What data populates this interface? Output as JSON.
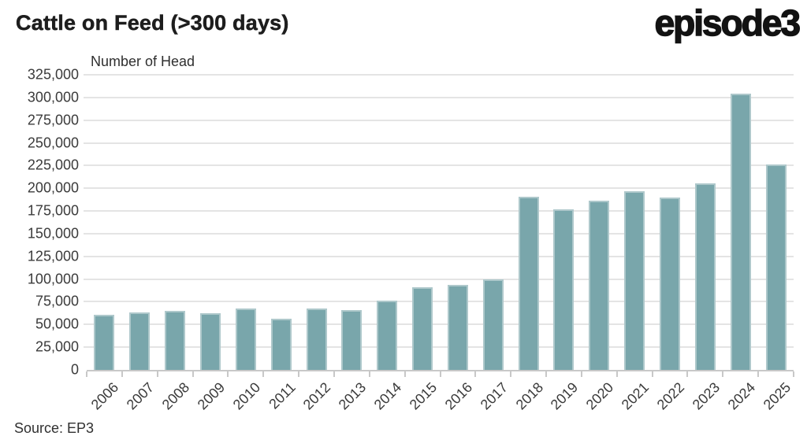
{
  "header": {
    "title": "Cattle on Feed (>300 days)",
    "logo": "episode3"
  },
  "source_note": "Source: EP3",
  "colors": {
    "bar_fill": "#79a6ab",
    "bar_edge": "#aec8cb",
    "gridline": "#e4e4e4",
    "axis": "#c8c8c8",
    "text": "#3b3b3b",
    "title": "#1d1d1d"
  },
  "chart_data": {
    "type": "bar",
    "title": "Cattle on Feed (>300 days)",
    "ylabel": "Number of Head",
    "xlabel": "",
    "categories": [
      "2006",
      "2007",
      "2008",
      "2009",
      "2010",
      "2011",
      "2012",
      "2013",
      "2014",
      "2015",
      "2016",
      "2017",
      "2018",
      "2019",
      "2020",
      "2021",
      "2022",
      "2023",
      "2024",
      "2025"
    ],
    "values": [
      61000,
      63000,
      65000,
      62000,
      68000,
      56000,
      68000,
      66000,
      76000,
      91000,
      94000,
      100000,
      191000,
      177000,
      186000,
      197000,
      190000,
      205000,
      304000,
      226000
    ],
    "ylim": [
      0,
      325000
    ],
    "ytick_step": 25000,
    "grid": true,
    "legend": false,
    "source": "Source: EP3"
  }
}
